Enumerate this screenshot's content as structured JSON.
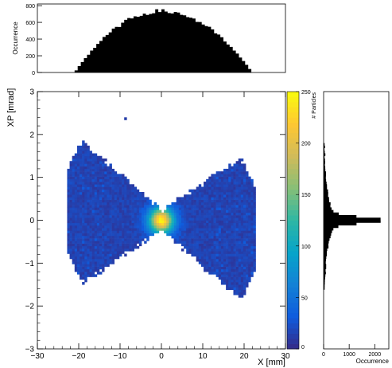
{
  "chart_data": [
    {
      "type": "heatmap",
      "panel": "main",
      "xlabel": "X [mm]",
      "ylabel": "XP [mrad]",
      "zlabel": "# Particles",
      "xlim": [
        -30,
        30
      ],
      "ylim": [
        -3,
        3
      ],
      "zlim": [
        0,
        250
      ],
      "x_ticks": [
        -30,
        -20,
        -10,
        0,
        10,
        20,
        30
      ],
      "y_ticks": [
        -3,
        -2,
        -1,
        0,
        1,
        2,
        3
      ],
      "z_ticks": [
        0,
        50,
        100,
        150,
        200,
        250
      ],
      "bins": {
        "nx": 100,
        "ny": 100,
        "x_range": [
          -30,
          30
        ],
        "y_range": [
          -3,
          3
        ]
      },
      "distribution": {
        "description_of_shape": "bow-tie",
        "core": {
          "x": 0,
          "y": 0,
          "peak_count": 230
        },
        "x_extent": [
          -23,
          23
        ],
        "y_at_x_extremes": [
          [
            -1.5,
            1.8
          ],
          [
            -1.6,
            1.3
          ]
        ],
        "outliers": [
          {
            "x": -9,
            "y": 2.35
          }
        ]
      },
      "colormap": [
        "#352a87",
        "#0f5cdd",
        "#1481d6",
        "#06a4ca",
        "#2eb7a4",
        "#87bf77",
        "#d1bb59",
        "#fec832",
        "#f9fb0e"
      ]
    },
    {
      "type": "bar",
      "panel": "top-projection",
      "ylabel": "Occurrence",
      "ylim": [
        0,
        820
      ],
      "y_ticks": [
        0,
        200,
        400,
        600,
        800
      ],
      "x_range": [
        -30,
        30
      ],
      "profile": {
        "start_x": -21,
        "end_x": 22,
        "peak_x": 0,
        "peak_value": 760
      }
    },
    {
      "type": "bar",
      "panel": "right-projection",
      "orientation": "horizontal",
      "xlabel": "Occurrence",
      "xlim": [
        0,
        2550
      ],
      "x_ticks": [
        0,
        1000,
        2000
      ],
      "y_range": [
        -3,
        3
      ],
      "profile": {
        "start_y": -1.6,
        "end_y": 1.8,
        "peak_y": 0,
        "peak_value": 2400
      }
    }
  ]
}
